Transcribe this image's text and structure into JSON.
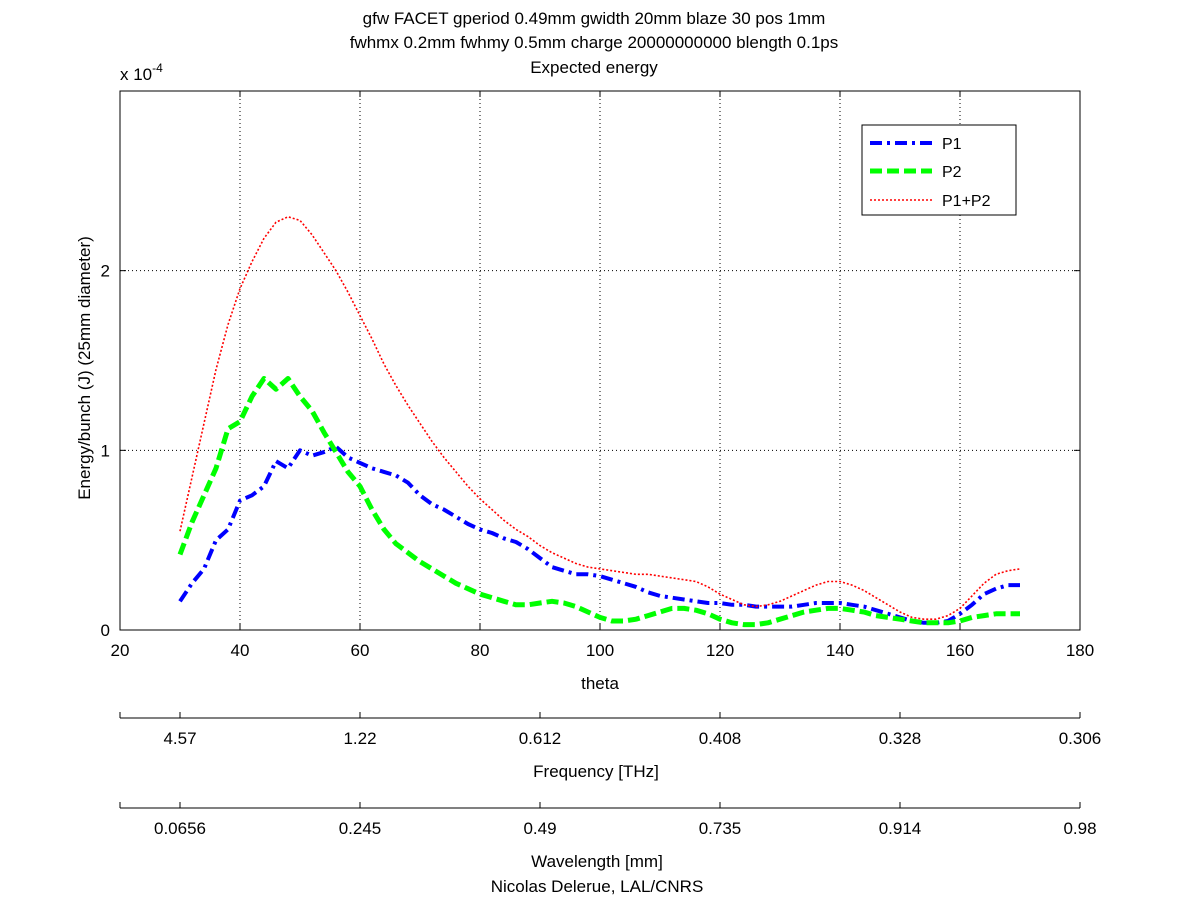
{
  "title_lines": [
    "gfw FACET gperiod 0.49mm gwidth 20mm blaze 30 pos 1mm",
    "fwhmx 0.2mm fwhmy 0.5mm charge 20000000000 blength 0.1ps",
    "Expected energy"
  ],
  "chart_data": {
    "type": "line",
    "xlabel": "theta",
    "ylabel": "Energy/bunch (J) (25mm diameter)",
    "y_multiplier": "x 10",
    "y_multiplier_exp": "-4",
    "xlim": [
      20,
      180
    ],
    "ylim": [
      0,
      3
    ],
    "xticks": [
      20,
      40,
      60,
      80,
      100,
      120,
      140,
      160,
      180
    ],
    "yticks": [
      0,
      1,
      2
    ],
    "grid": true,
    "legend_placement": "top-right",
    "series": [
      {
        "name": "P1",
        "color": "#0000ff",
        "style": "dash-dot",
        "x": [
          30,
          32,
          34,
          36,
          38,
          40,
          42,
          44,
          46,
          48,
          50,
          52,
          54,
          56,
          58,
          60,
          62,
          64,
          66,
          68,
          70,
          72,
          74,
          76,
          78,
          80,
          82,
          84,
          86,
          88,
          90,
          92,
          94,
          96,
          98,
          100,
          102,
          104,
          106,
          108,
          110,
          112,
          114,
          116,
          118,
          120,
          122,
          124,
          126,
          128,
          130,
          132,
          134,
          136,
          138,
          140,
          142,
          144,
          146,
          148,
          150,
          152,
          154,
          156,
          158,
          160,
          162,
          164,
          166,
          168,
          170
        ],
        "y": [
          0.16,
          0.26,
          0.34,
          0.5,
          0.56,
          0.72,
          0.75,
          0.8,
          0.94,
          0.9,
          1.0,
          0.97,
          0.99,
          1.02,
          0.96,
          0.93,
          0.9,
          0.88,
          0.86,
          0.82,
          0.75,
          0.7,
          0.67,
          0.63,
          0.59,
          0.56,
          0.54,
          0.51,
          0.49,
          0.45,
          0.4,
          0.35,
          0.33,
          0.31,
          0.31,
          0.3,
          0.28,
          0.26,
          0.24,
          0.21,
          0.19,
          0.18,
          0.17,
          0.16,
          0.15,
          0.15,
          0.14,
          0.14,
          0.13,
          0.13,
          0.13,
          0.13,
          0.14,
          0.15,
          0.15,
          0.15,
          0.14,
          0.13,
          0.11,
          0.09,
          0.07,
          0.05,
          0.04,
          0.04,
          0.05,
          0.09,
          0.14,
          0.2,
          0.23,
          0.25,
          0.25
        ]
      },
      {
        "name": "P2",
        "color": "#00ff00",
        "style": "dashed",
        "x": [
          30,
          32,
          34,
          36,
          38,
          40,
          42,
          44,
          46,
          48,
          50,
          52,
          54,
          56,
          58,
          60,
          62,
          64,
          66,
          68,
          70,
          72,
          74,
          76,
          78,
          80,
          82,
          84,
          86,
          88,
          90,
          92,
          94,
          96,
          98,
          100,
          102,
          104,
          106,
          108,
          110,
          112,
          114,
          116,
          118,
          120,
          122,
          124,
          126,
          128,
          130,
          132,
          134,
          136,
          138,
          140,
          142,
          144,
          146,
          148,
          150,
          152,
          154,
          156,
          158,
          160,
          162,
          164,
          166,
          168,
          170
        ],
        "y": [
          0.42,
          0.6,
          0.75,
          0.9,
          1.12,
          1.16,
          1.3,
          1.4,
          1.34,
          1.4,
          1.3,
          1.22,
          1.1,
          0.99,
          0.88,
          0.8,
          0.67,
          0.56,
          0.48,
          0.43,
          0.38,
          0.34,
          0.3,
          0.26,
          0.23,
          0.2,
          0.18,
          0.16,
          0.14,
          0.14,
          0.15,
          0.16,
          0.15,
          0.13,
          0.1,
          0.07,
          0.05,
          0.05,
          0.06,
          0.08,
          0.1,
          0.12,
          0.12,
          0.11,
          0.09,
          0.06,
          0.04,
          0.03,
          0.03,
          0.04,
          0.06,
          0.08,
          0.1,
          0.11,
          0.12,
          0.12,
          0.11,
          0.1,
          0.08,
          0.07,
          0.06,
          0.05,
          0.04,
          0.04,
          0.04,
          0.05,
          0.07,
          0.08,
          0.09,
          0.09,
          0.09
        ]
      },
      {
        "name": "P1+P2",
        "color": "#ff0000",
        "style": "dotted",
        "x": [
          30,
          32,
          34,
          36,
          38,
          40,
          42,
          44,
          46,
          48,
          50,
          52,
          54,
          56,
          58,
          60,
          62,
          64,
          66,
          68,
          70,
          72,
          74,
          76,
          78,
          80,
          82,
          84,
          86,
          88,
          90,
          92,
          94,
          96,
          98,
          100,
          102,
          104,
          106,
          108,
          110,
          112,
          114,
          116,
          118,
          120,
          122,
          124,
          126,
          128,
          130,
          132,
          134,
          136,
          138,
          140,
          142,
          144,
          146,
          148,
          150,
          152,
          154,
          156,
          158,
          160,
          162,
          164,
          166,
          168,
          170
        ],
        "y": [
          0.55,
          0.85,
          1.15,
          1.45,
          1.7,
          1.9,
          2.05,
          2.18,
          2.27,
          2.3,
          2.28,
          2.2,
          2.1,
          2.0,
          1.88,
          1.75,
          1.62,
          1.48,
          1.36,
          1.25,
          1.15,
          1.05,
          0.96,
          0.88,
          0.8,
          0.73,
          0.67,
          0.61,
          0.56,
          0.52,
          0.47,
          0.43,
          0.4,
          0.37,
          0.35,
          0.34,
          0.33,
          0.32,
          0.31,
          0.31,
          0.3,
          0.29,
          0.28,
          0.27,
          0.24,
          0.2,
          0.17,
          0.14,
          0.13,
          0.14,
          0.16,
          0.19,
          0.22,
          0.25,
          0.27,
          0.27,
          0.25,
          0.22,
          0.18,
          0.14,
          0.1,
          0.07,
          0.06,
          0.06,
          0.08,
          0.12,
          0.19,
          0.26,
          0.31,
          0.33,
          0.34
        ]
      }
    ]
  },
  "frequency_axis": {
    "label": "Frequency [THz]",
    "ticks": [
      {
        "theta": 30,
        "label": "4.57"
      },
      {
        "theta": 60,
        "label": "1.22"
      },
      {
        "theta": 90,
        "label": "0.612"
      },
      {
        "theta": 120,
        "label": "0.408"
      },
      {
        "theta": 150,
        "label": "0.328"
      },
      {
        "theta": 180,
        "label": "0.306"
      }
    ]
  },
  "wavelength_axis": {
    "label": "Wavelength [mm]",
    "ticks": [
      {
        "theta": 30,
        "label": "0.0656"
      },
      {
        "theta": 60,
        "label": "0.245"
      },
      {
        "theta": 90,
        "label": "0.49"
      },
      {
        "theta": 120,
        "label": "0.735"
      },
      {
        "theta": 150,
        "label": "0.914"
      },
      {
        "theta": 180,
        "label": "0.98"
      }
    ]
  },
  "credit": "Nicolas Delerue, LAL/CNRS"
}
